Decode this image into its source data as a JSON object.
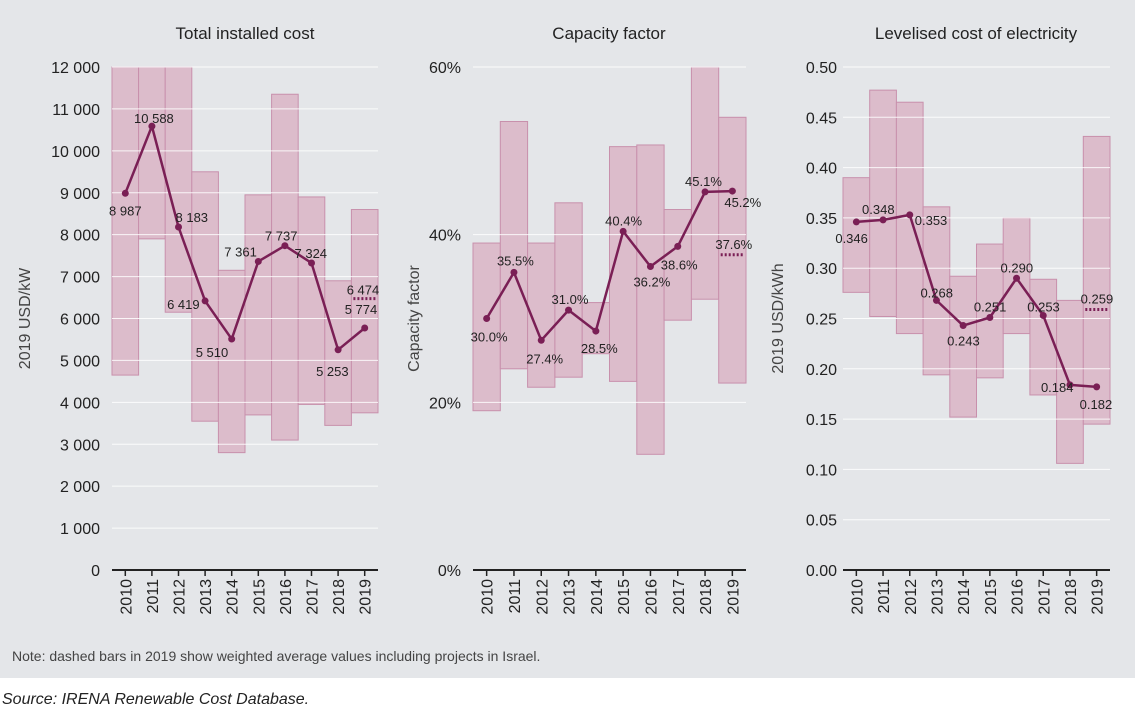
{
  "note": "Note: dashed bars in 2019 show weighted average values including projects in Israel.",
  "source": "Source: IRENA Renewable Cost Database.",
  "colors": {
    "band": "#dcbccb",
    "band_stroke": "#c890ac",
    "line": "#7a1f55",
    "grid": "#ffffff",
    "axis": "#222222"
  },
  "chart_data": [
    {
      "type": "line",
      "title": "Total installed cost",
      "ylabel": "2019 USD/kW",
      "categories": [
        "2010",
        "2011",
        "2012",
        "2013",
        "2014",
        "2015",
        "2016",
        "2017",
        "2018",
        "2019"
      ],
      "ylim": [
        0,
        12000
      ],
      "yticks": [
        0,
        1000,
        2000,
        3000,
        4000,
        5000,
        6000,
        7000,
        8000,
        9000,
        10000,
        11000,
        12000
      ],
      "ytick_labels": [
        "0",
        "1 000",
        "2 000",
        "3 000",
        "4 000",
        "5 000",
        "6 000",
        "7 000",
        "8 000",
        "9 000",
        "10 000",
        "11 000",
        "12 000"
      ],
      "series": [
        {
          "values": [
            8987,
            10588,
            8183,
            6419,
            5510,
            7361,
            7737,
            7324,
            5253,
            5774
          ],
          "labels": [
            "8 987",
            "10 588",
            "8 183",
            "6 419",
            "5 510",
            "7 361",
            "7 737",
            "7 324",
            "5 253",
            "5 774"
          ]
        }
      ],
      "range_low": [
        4650,
        7900,
        6150,
        3550,
        2800,
        3700,
        3100,
        3950,
        3450,
        3750
      ],
      "range_high": [
        12000,
        12000,
        12000,
        9500,
        7150,
        8950,
        11350,
        8900,
        6900,
        8600
      ],
      "dashed_2019": {
        "value": 6474,
        "label": "6 474"
      },
      "grid": true
    },
    {
      "type": "line",
      "title": "Capacity factor",
      "ylabel": "Capacity factor",
      "categories": [
        "2010",
        "2011",
        "2012",
        "2013",
        "2014",
        "2015",
        "2016",
        "2017",
        "2018",
        "2019"
      ],
      "ylim": [
        0,
        60
      ],
      "yticks": [
        0,
        20,
        40,
        60
      ],
      "ytick_labels": [
        "0%",
        "20%",
        "40%",
        "60%"
      ],
      "series": [
        {
          "values": [
            30.0,
            35.5,
            27.4,
            31.0,
            28.5,
            40.4,
            36.2,
            38.6,
            45.1,
            45.2
          ],
          "labels": [
            "30.0%",
            "35.5%",
            "27.4%",
            "31.0%",
            "28.5%",
            "40.4%",
            "36.2%",
            "38.6%",
            "45.1%",
            "45.2%"
          ]
        }
      ],
      "range_low": [
        19,
        24,
        21.8,
        23,
        25.8,
        22.5,
        13.8,
        29.8,
        32.3,
        22.3
      ],
      "range_high": [
        39,
        53.5,
        39,
        43.8,
        31.9,
        50.5,
        50.7,
        43,
        60,
        54
      ],
      "dashed_2019": {
        "value": 37.6,
        "label": "37.6%"
      },
      "grid": true
    },
    {
      "type": "line",
      "title": "Levelised cost of electricity",
      "ylabel": "2019 USD/kWh",
      "categories": [
        "2010",
        "2011",
        "2012",
        "2013",
        "2014",
        "2015",
        "2016",
        "2017",
        "2018",
        "2019"
      ],
      "ylim": [
        0,
        0.5
      ],
      "yticks": [
        0,
        0.05,
        0.1,
        0.15,
        0.2,
        0.25,
        0.3,
        0.35,
        0.4,
        0.45,
        0.5
      ],
      "ytick_labels": [
        "0.00",
        "0.05",
        "0.10",
        "0.15",
        "0.20",
        "0.25",
        "0.30",
        "0.35",
        "0.40",
        "0.45",
        "0.50"
      ],
      "series": [
        {
          "values": [
            0.346,
            0.348,
            0.353,
            0.268,
            0.243,
            0.251,
            0.29,
            0.253,
            0.184,
            0.182
          ],
          "labels": [
            "0.346",
            "0.348",
            "0.353",
            "0.268",
            "0.243",
            "0.251",
            "0.290",
            "0.253",
            "0.184",
            "0.182"
          ]
        }
      ],
      "range_low": [
        0.276,
        0.252,
        0.235,
        0.194,
        0.152,
        0.191,
        0.235,
        0.174,
        0.106,
        0.145
      ],
      "range_high": [
        0.39,
        0.477,
        0.465,
        0.361,
        0.292,
        0.324,
        0.35,
        0.289,
        0.268,
        0.431
      ],
      "dashed_2019": {
        "value": 0.259,
        "label": "0.259"
      },
      "grid": true
    }
  ]
}
